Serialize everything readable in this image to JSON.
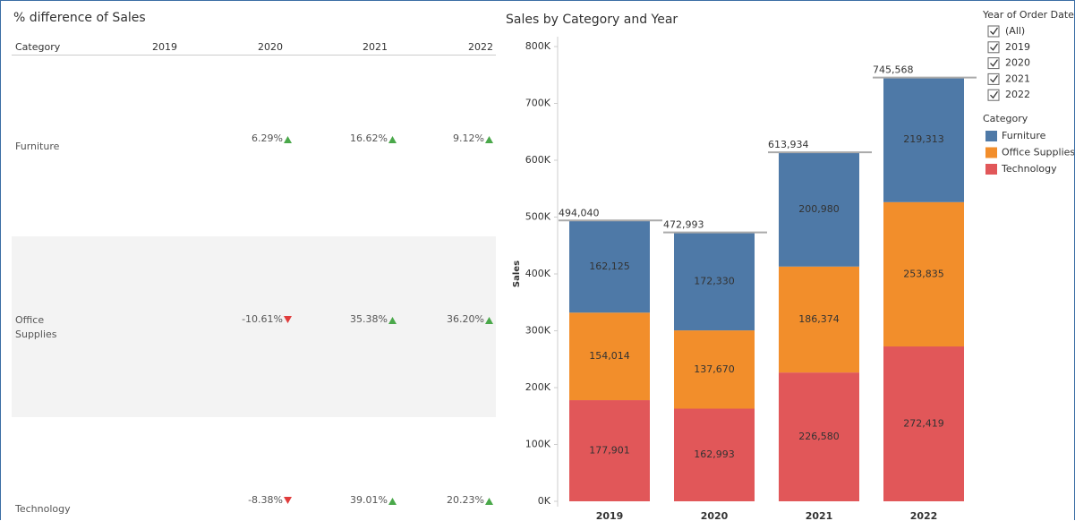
{
  "table": {
    "title": "% difference of Sales",
    "columns": [
      "Category",
      "2019",
      "2020",
      "2021",
      "2022"
    ],
    "rows": [
      [
        "Furniture",
        "",
        "6.29%",
        "16.62%",
        "9.12%"
      ],
      [
        "Office Supplies",
        "",
        "-10.61%",
        "35.38%",
        "36.20%"
      ],
      [
        "Technology",
        "",
        "-8.38%",
        "39.01%",
        "20.23%"
      ]
    ]
  },
  "chart_data": {
    "type": "stacked_bar",
    "title": "Sales by Category and Year",
    "y_label": "Sales",
    "categories": [
      "2019",
      "2020",
      "2021",
      "2022"
    ],
    "series": [
      {
        "name": "Furniture",
        "color": "#4e79a7",
        "values": [
          162125,
          172330,
          200980,
          219313
        ],
        "value_labels": [
          "162,125",
          "172,330",
          "200,980",
          "219,313"
        ]
      },
      {
        "name": "Office Supplies",
        "color": "#f28e2b",
        "values": [
          154014,
          137670,
          186374,
          253835
        ],
        "value_labels": [
          "154,014",
          "137,670",
          "186,374",
          "253,835"
        ]
      },
      {
        "name": "Technology",
        "color": "#e15759",
        "values": [
          177901,
          162993,
          226580,
          272419
        ],
        "value_labels": [
          "177,901",
          "162,993",
          "226,580",
          "272,419"
        ]
      }
    ],
    "totals": [
      494040,
      472993,
      613934,
      745568
    ],
    "total_labels": [
      "494,040",
      "472,993",
      "613,934",
      "745,568"
    ],
    "legend_title": "Category",
    "ylim": [
      0,
      800000
    ],
    "yticks": [
      {
        "value": 0,
        "label": "0K"
      },
      {
        "value": 100000,
        "label": "100K"
      },
      {
        "value": 200000,
        "label": "200K"
      },
      {
        "value": 300000,
        "label": "300K"
      },
      {
        "value": 400000,
        "label": "400K"
      },
      {
        "value": 500000,
        "label": "500K"
      },
      {
        "value": 600000,
        "label": "600K"
      },
      {
        "value": 700000,
        "label": "700K"
      },
      {
        "value": 800000,
        "label": "800K"
      }
    ]
  },
  "filter": {
    "title": "Year of Order Date",
    "options": [
      "(All)",
      "2019",
      "2020",
      "2021",
      "2022"
    ]
  }
}
